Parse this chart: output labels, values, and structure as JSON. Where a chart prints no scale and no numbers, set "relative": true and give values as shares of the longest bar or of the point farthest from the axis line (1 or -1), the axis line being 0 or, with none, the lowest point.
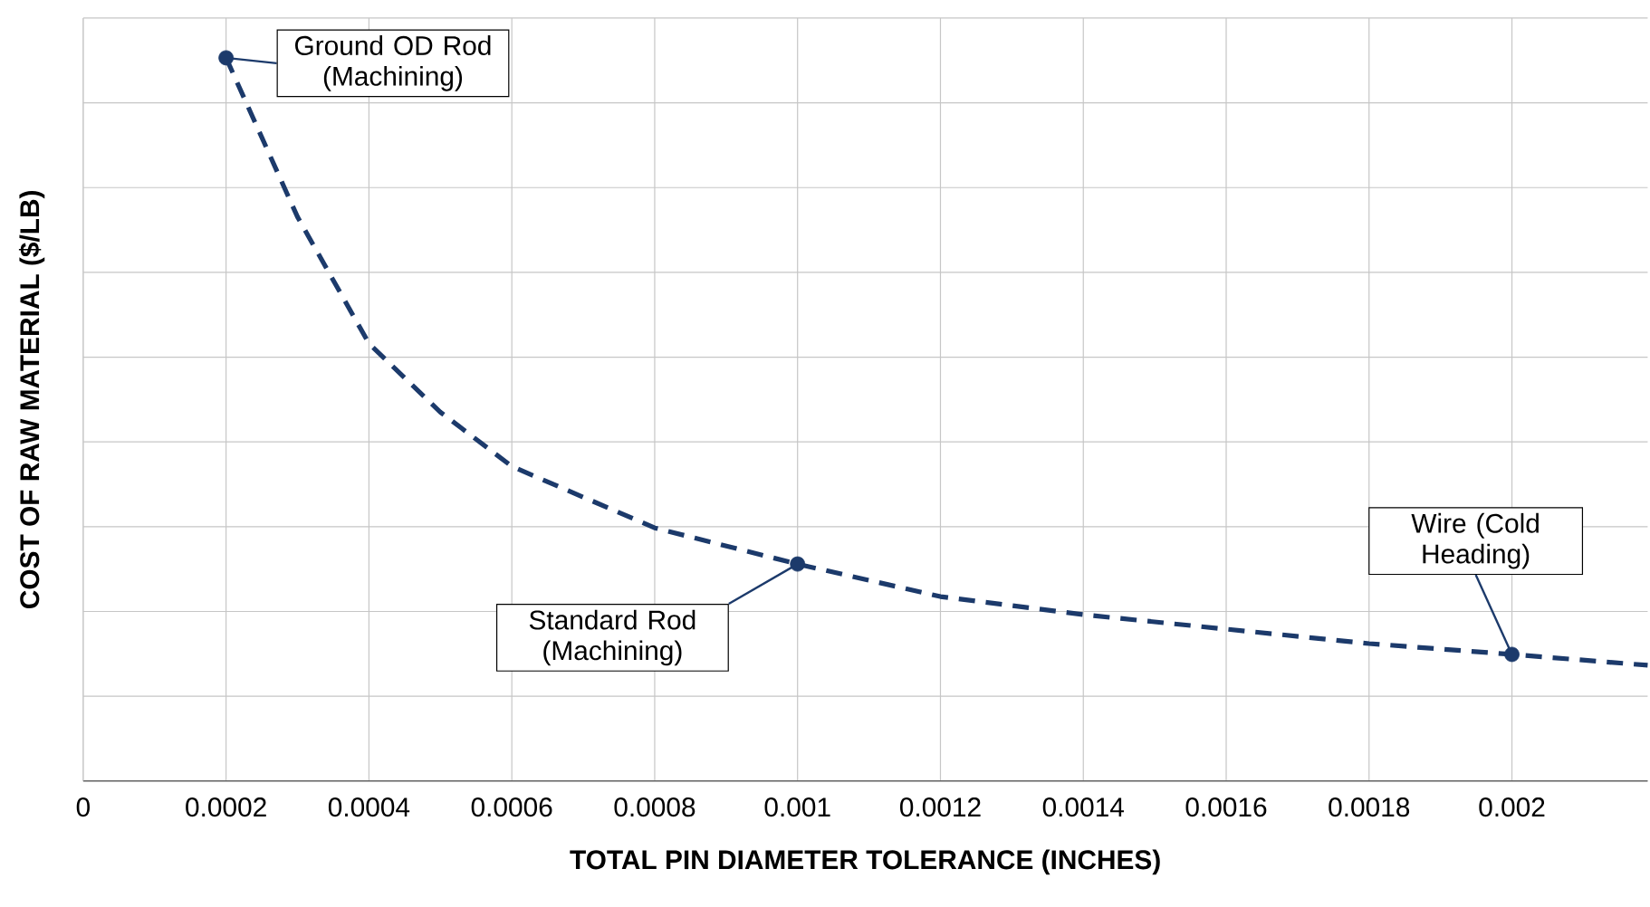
{
  "chart_data": {
    "type": "line",
    "relative": true,
    "xlabel": "TOTAL PIN DIAMETER TOLERANCE (INCHES)",
    "ylabel": "COST OF RAW MATERIAL ($/LB)",
    "xlim": [
      0,
      0.00219
    ],
    "xticks": [
      0,
      0.0002,
      0.0004,
      0.0006,
      0.0008,
      0.001,
      0.0012,
      0.0014,
      0.0016,
      0.0018,
      0.002
    ],
    "grid": true,
    "series": [
      {
        "color": "#1c3a6b",
        "line_style": "dashed",
        "marker": "none",
        "x": [
          0.0002,
          0.0003,
          0.0004,
          0.0005,
          0.0006,
          0.0008,
          0.001,
          0.0012,
          0.0014,
          0.0016,
          0.0018,
          0.002,
          0.00219
        ],
        "values": [
          1,
          0.78,
          0.605,
          0.51,
          0.435,
          0.35,
          0.3,
          0.255,
          0.23,
          0.21,
          0.19,
          0.175,
          0.16
        ]
      },
      {
        "type": "scatter",
        "color": "#1c3a6b",
        "marker": "circle",
        "x": [
          0.0002,
          0.001,
          0.002
        ],
        "values": [
          1,
          0.3,
          0.175
        ]
      }
    ],
    "annotations": [
      {
        "text": "Ground OD Rod (Machining)",
        "x": 0.0002,
        "y": 1
      },
      {
        "text": "Standard Rod (Machining)",
        "x": 0.001,
        "y": 0.3
      },
      {
        "text": "Wire (Cold Heading)",
        "x": 0.002,
        "y": 0.175
      }
    ]
  }
}
